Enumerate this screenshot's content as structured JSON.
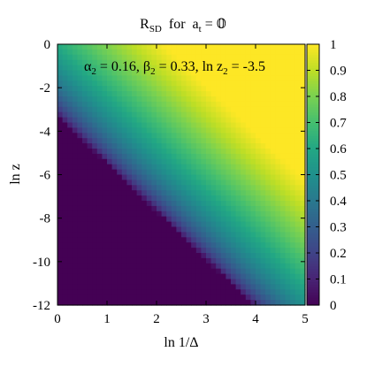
{
  "chart_data": {
    "type": "heatmap",
    "title": {
      "main": "R",
      "main_sub": "SD",
      "mid": "for",
      "var": "a",
      "var_sub": "t",
      "eq": "= 𝟘"
    },
    "annotation": {
      "a_sym": "α",
      "a_sub": "2",
      "a_val": " = 0.16, ",
      "b_sym": "β",
      "b_sub": "2",
      "b_val": " = 0.33, ",
      "c_sym": "ln z",
      "c_sub": "2",
      "c_val": " = -3.5"
    },
    "xlabel": "ln 1/Δ",
    "ylabel": "ln z",
    "x_range": [
      0,
      5
    ],
    "y_range": [
      -12,
      0
    ],
    "z_range": [
      0,
      1
    ],
    "xticks": [
      0,
      1,
      2,
      3,
      4,
      5
    ],
    "yticks": [
      -12,
      -10,
      -8,
      -6,
      -4,
      -2,
      0
    ],
    "colorbar_ticks": [
      0,
      0.1,
      0.2,
      0.3,
      0.4,
      0.5,
      0.6,
      0.7,
      0.8,
      0.9,
      1
    ],
    "colormap": "viridis",
    "grid": {
      "nx": 50,
      "ny": 50
    },
    "surface": {
      "description_of_function": "value depends on ln z + 2.2 * ln 1/Δ; ~0 below ln z = -3.3 - 2.2 x, ~1 near top-right",
      "zero_line_intercept": -3.3,
      "slope": 2.2,
      "width": 8.0,
      "max_value": 1.0
    }
  }
}
